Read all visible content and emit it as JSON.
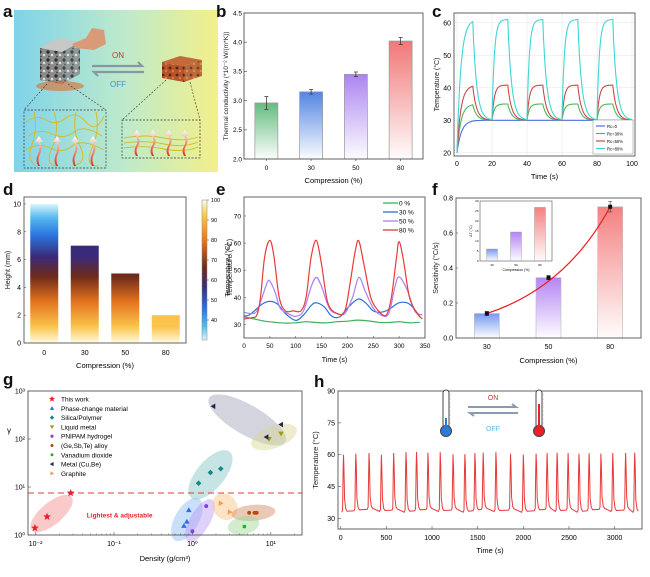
{
  "panel_labels": {
    "a": "a",
    "b": "b",
    "c": "c",
    "d": "d",
    "e": "e",
    "f": "f",
    "g": "g",
    "h": "h"
  },
  "schematic_a": {
    "on_label": "ON",
    "off_label": "OFF",
    "colors": {
      "on": "#c0392b",
      "off": "#3a8fd8",
      "bg_left": "#7fd3ea",
      "bg_right": "#f3f08a"
    }
  },
  "chart_data": [
    {
      "id": "b",
      "type": "bar",
      "title": "",
      "xlabel": "Compression (%)",
      "ylabel": "Thermal conductivity (*10⁻² W/(m*K))",
      "categories": [
        "0",
        "30",
        "50",
        "80"
      ],
      "values": [
        2.96,
        3.15,
        3.45,
        4.02
      ],
      "errors": [
        0.11,
        0.04,
        0.04,
        0.06
      ],
      "colors": [
        "#5cb87a",
        "#4a7fe0",
        "#a77ef0",
        "#f07070"
      ],
      "ylim": [
        2.0,
        4.5
      ],
      "yticks": [
        "2.0",
        "2.5",
        "3.0",
        "3.5",
        "4.0",
        "4.5"
      ]
    },
    {
      "id": "c",
      "type": "line",
      "xlabel": "Time (s)",
      "ylabel": "Temperature (°C)",
      "xlim": [
        0,
        100
      ],
      "ylim": [
        19,
        63
      ],
      "xticks": [
        "0",
        "20",
        "40",
        "60",
        "80",
        "100"
      ],
      "yticks": [
        "20",
        "30",
        "40",
        "50",
        "60"
      ],
      "legend_position": "bottom-right",
      "grid": true,
      "series": [
        {
          "name": "Rc=0",
          "color": "#4a6fe0",
          "base": 30,
          "peak": 30
        },
        {
          "name": "Rc=30%",
          "color": "#4cb85c",
          "base": 30,
          "peak": 35
        },
        {
          "name": "Rc=50%",
          "color": "#d04848",
          "base": 30,
          "peak": 40.8
        },
        {
          "name": "Rc=80%",
          "color": "#3fd6d6",
          "base": 30,
          "peak": 61
        }
      ],
      "cycle_period_s": 20,
      "on_duration_s": 9
    },
    {
      "id": "d",
      "type": "bar",
      "xlabel": "Compression (%)",
      "ylabel": "Height (mm)",
      "categories": [
        "0",
        "30",
        "50",
        "80"
      ],
      "values": [
        10,
        7,
        5,
        2
      ],
      "ylim": [
        0,
        10.5
      ],
      "yticks": [
        "0",
        "2",
        "4",
        "6",
        "8",
        "10"
      ],
      "colorbar": {
        "label": "Temperature (°C)",
        "min": 30,
        "max": 100,
        "ticks": [
          "40",
          "50",
          "60",
          "70",
          "80",
          "90",
          "100"
        ]
      }
    },
    {
      "id": "e",
      "type": "line",
      "xlabel": "Time (s)",
      "ylabel": "Temperature (°C)",
      "xlim": [
        0,
        350
      ],
      "ylim": [
        25,
        77
      ],
      "xticks": [
        "0",
        "50",
        "100",
        "150",
        "200",
        "250",
        "300",
        "350"
      ],
      "yticks": [
        "30",
        "40",
        "50",
        "60",
        "70"
      ],
      "legend_position": "top-right",
      "series": [
        {
          "name": "0 %",
          "color": "#3cb05a",
          "x": [
            0,
            20,
            40,
            60,
            80,
            100,
            120,
            140,
            160,
            180,
            200,
            220,
            240,
            260,
            280,
            300,
            320,
            340
          ],
          "y": [
            32.8,
            32,
            31.2,
            30.8,
            30.5,
            30.6,
            31,
            30.7,
            30.6,
            31,
            31.2,
            31.6,
            31.3,
            30.8,
            30.7,
            31,
            30.6,
            30.8
          ]
        },
        {
          "name": "30 %",
          "color": "#2f6fd6",
          "x": [
            0,
            10,
            20,
            35,
            50,
            65,
            80,
            100,
            115,
            130,
            140,
            155,
            170,
            185,
            200,
            220,
            235,
            250,
            265,
            280,
            300,
            320,
            340
          ],
          "y": [
            33,
            33.5,
            35,
            37.5,
            38.5,
            37.5,
            34,
            31.5,
            33.5,
            37,
            38,
            36.5,
            33,
            32.8,
            36,
            39.3,
            38,
            35,
            34.5,
            35.5,
            38,
            37.5,
            33
          ]
        },
        {
          "name": "50 %",
          "color": "#a97ff2",
          "x": [
            0,
            15,
            25,
            35,
            45,
            50,
            60,
            70,
            85,
            100,
            115,
            130,
            140,
            150,
            165,
            180,
            195,
            210,
            222,
            235,
            250,
            265,
            280,
            292,
            300,
            315,
            330,
            345
          ],
          "y": [
            34.5,
            34,
            35,
            40,
            45.5,
            46,
            42,
            36,
            34,
            33,
            35,
            44,
            47.3,
            44,
            36,
            34,
            34,
            40,
            47.3,
            42,
            36,
            33.5,
            34,
            44,
            47.5,
            43,
            35,
            33.5
          ]
        },
        {
          "name": "80 %",
          "color": "#e83a3a",
          "x": [
            0,
            15,
            25,
            32,
            40,
            50,
            58,
            68,
            80,
            95,
            110,
            120,
            130,
            140,
            150,
            162,
            180,
            195,
            205,
            215,
            222,
            232,
            245,
            260,
            275,
            285,
            295,
            300,
            308,
            320,
            335,
            345
          ],
          "y": [
            32,
            32.5,
            33.5,
            40,
            55,
            61,
            55,
            40,
            35,
            35,
            35,
            40,
            55,
            61,
            52,
            38,
            34,
            35,
            45,
            57,
            60.8,
            52,
            40,
            35,
            33.5,
            40,
            55,
            60.5,
            54,
            40,
            34,
            32
          ]
        }
      ]
    },
    {
      "id": "f",
      "type": "bar",
      "xlabel": "Compression (%)",
      "ylabel": "Sensitivity (°C/s)",
      "categories": [
        "30",
        "50",
        "80"
      ],
      "values": [
        0.14,
        0.345,
        0.75
      ],
      "errors": [
        0.012,
        0.012,
        0.03
      ],
      "colors": [
        "#6f95f0",
        "#b07ff2",
        "#f47a7a"
      ],
      "ylim": [
        0.0,
        0.8
      ],
      "yticks": [
        "0.0",
        "0.2",
        "0.4",
        "0.6",
        "0.8"
      ],
      "fit_line_color": "#e81c1c",
      "inset": {
        "type": "bar",
        "xlabel": "Compression (%)",
        "ylabel": "ΔT (°C)",
        "categories": [
          "30",
          "50",
          "80"
        ],
        "values": [
          6,
          14.5,
          26.8
        ],
        "errors": [
          0.6,
          0.8,
          0.7
        ],
        "colors": [
          "#6f95f0",
          "#b07ff2",
          "#f47a7a"
        ],
        "ylim": [
          0,
          30
        ],
        "yticks": [
          "0",
          "5",
          "10",
          "15",
          "20",
          "25",
          "30"
        ]
      }
    },
    {
      "id": "g",
      "type": "scatter",
      "xlabel": "Density (g/cm³)",
      "ylabel": "γ",
      "xscale": "log",
      "yscale": "log",
      "xlim": [
        0.008,
        25
      ],
      "ylim": [
        1,
        1000
      ],
      "xticks": [
        "10⁻²",
        "10⁻¹",
        "10⁰",
        "10¹"
      ],
      "yticks": [
        "10⁰",
        "10¹",
        "10²",
        "10³"
      ],
      "reference_line": {
        "y": 7.5,
        "color": "#e83a3a",
        "style": "dashed"
      },
      "annotation": "Lightest & adjustable",
      "legend_position": "top-left",
      "series": [
        {
          "name": "This work",
          "marker": "star",
          "color": "#e8212a",
          "x": [
            0.0098,
            0.014,
            0.028
          ],
          "y": [
            1.4,
            2.4,
            7.5
          ]
        },
        {
          "name": "Phase-change material",
          "marker": "triangle-up",
          "color": "#2e6ee0",
          "x": [
            0.78,
            0.85,
            0.9
          ],
          "y": [
            1.55,
            1.9,
            3.3
          ]
        },
        {
          "name": "Silica/Polymer",
          "marker": "diamond",
          "color": "#148a82",
          "x": [
            1.2,
            1.7,
            2.3
          ],
          "y": [
            12,
            20,
            24
          ]
        },
        {
          "name": "Liquid metal",
          "marker": "triangle-down",
          "color": "#a09a10",
          "x": [
            9.5,
            13.5
          ],
          "y": [
            100,
            130
          ]
        },
        {
          "name": "PNIPAM hydrogel",
          "marker": "circle",
          "color": "#8040f0",
          "x": [
            1.0,
            1.5
          ],
          "y": [
            1.2,
            4.0
          ]
        },
        {
          "name": "(Ge,Sb,Te) alloy",
          "marker": "circle",
          "color": "#b64a10",
          "x": [
            5.3,
            6.2,
            6.6
          ],
          "y": [
            2.9,
            2.9,
            2.9
          ]
        },
        {
          "name": "Vanadium dioxide",
          "marker": "square",
          "color": "#20b030",
          "x": [
            4.6
          ],
          "y": [
            1.5
          ]
        },
        {
          "name": "Metal (Cu,Be)",
          "marker": "triangle-left",
          "color": "#24245a",
          "x": [
            1.85,
            8.8,
            13.5
          ],
          "y": [
            480,
            110,
            200
          ]
        },
        {
          "name": "Graphite",
          "marker": "triangle-right",
          "color": "#f0a050",
          "x": [
            2.3,
            3.0
          ],
          "y": [
            4.6,
            3.0
          ]
        }
      ]
    },
    {
      "id": "h",
      "type": "line",
      "xlabel": "Time (s)",
      "ylabel": "Temperature (°C)",
      "xlim": [
        -30,
        3300
      ],
      "ylim": [
        25,
        90
      ],
      "xticks": [
        "0",
        "500",
        "1000",
        "1500",
        "2000",
        "2500",
        "3000"
      ],
      "yticks": [
        "30",
        "45",
        "60",
        "75",
        "90"
      ],
      "color": "#e83a3a",
      "peak_times": [
        30,
        165,
        310,
        445,
        580,
        715,
        830,
        955,
        1090,
        1230,
        1360,
        1470,
        1560,
        1700,
        1860,
        2000,
        2140,
        2260,
        2370,
        2490,
        2610,
        2720,
        2850,
        2980,
        3120,
        3220
      ],
      "peak_values": [
        60,
        60.5,
        60.8,
        60,
        60.8,
        61.2,
        61.3,
        61,
        61.2,
        60.2,
        60.3,
        60.8,
        61,
        61.2,
        60.5,
        60,
        60.5,
        60.8,
        61,
        60.8,
        60.5,
        60.7,
        60.5,
        60.8,
        60.8,
        61
      ],
      "baseline": 33.5,
      "on_label": "ON",
      "off_label": "OFF"
    }
  ]
}
